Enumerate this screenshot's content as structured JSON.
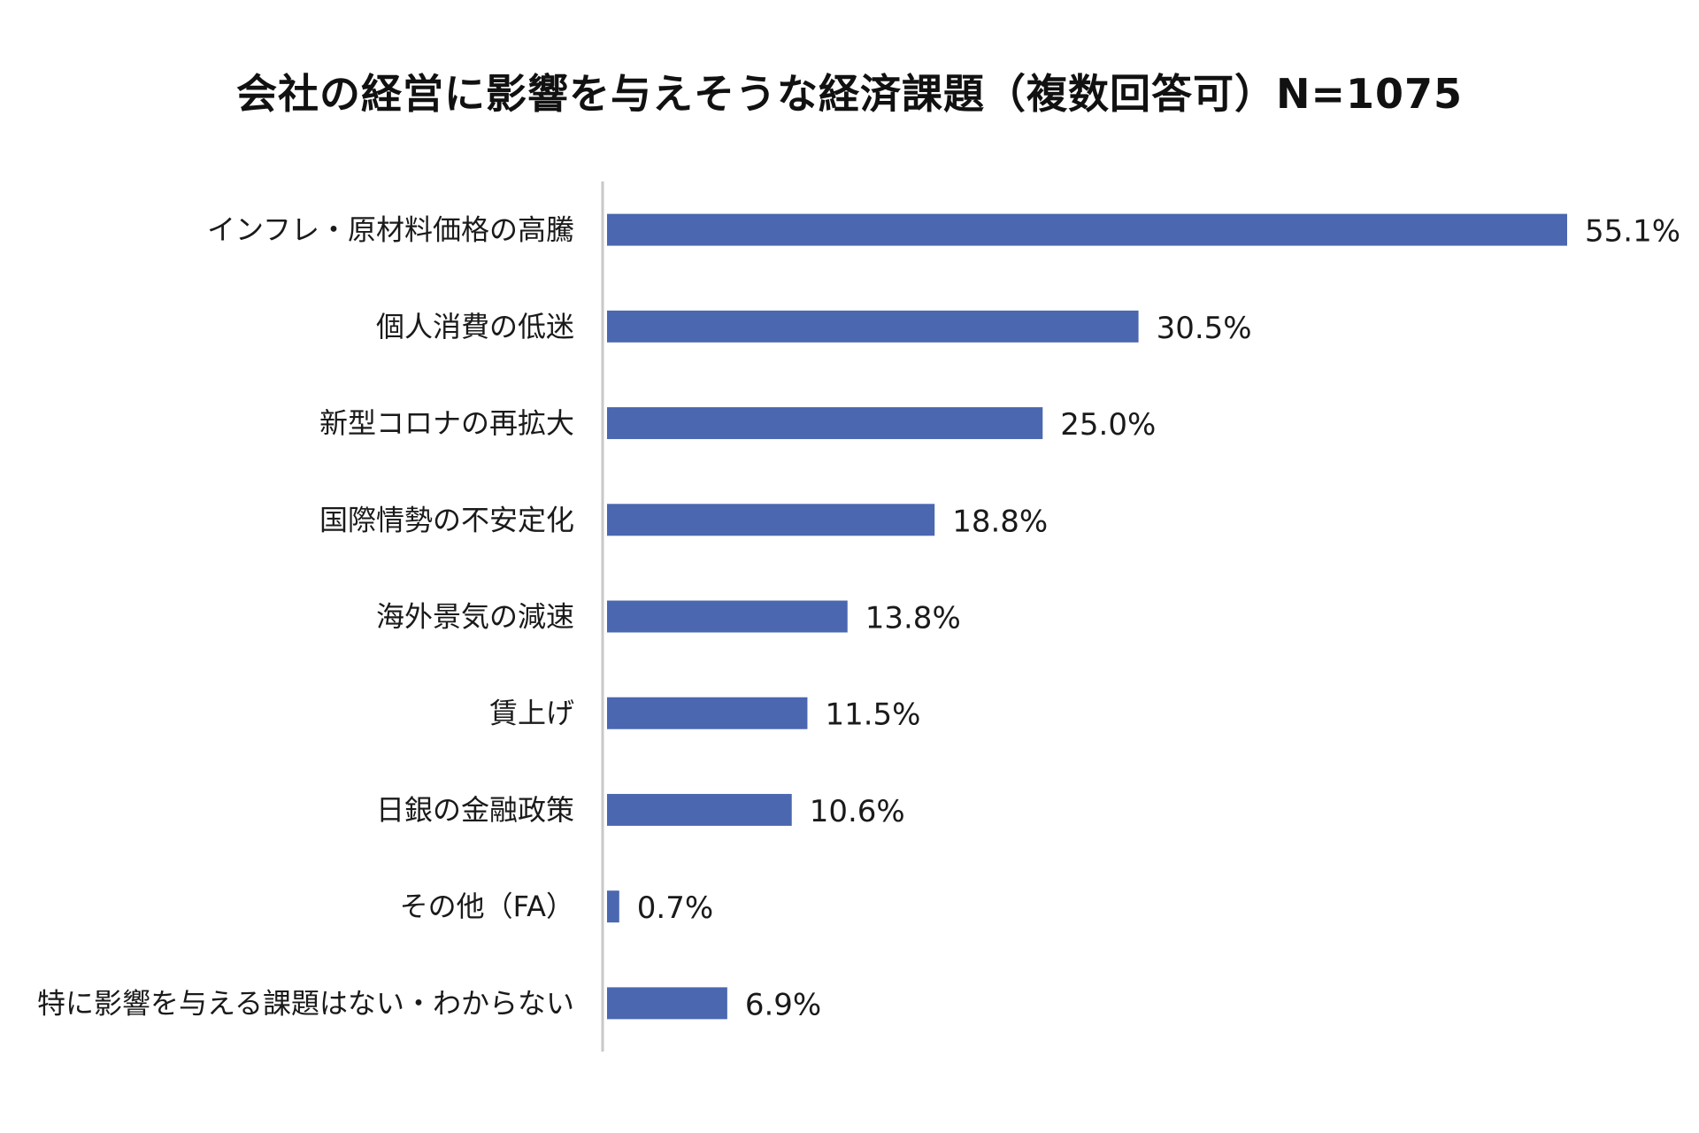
{
  "title": "会社の経営に影響を与えそうな経済課題（複数回答可）N=1075",
  "colors": {
    "bar": "#4a67b0",
    "axis": "#c8c8c8",
    "text": "#1a1a1a"
  },
  "chart_data": {
    "type": "bar",
    "orientation": "horizontal",
    "title": "会社の経営に影響を与えそうな経済課題（複数回答可）N=1075",
    "categories": [
      "インフレ・原材料価格の高騰",
      "個人消費の低迷",
      "新型コロナの再拡大",
      "国際情勢の不安定化",
      "海外景気の減速",
      "賃上げ",
      "日銀の金融政策",
      "その他（FA）",
      "特に影響を与える課題はない・わからない"
    ],
    "values": [
      55.1,
      30.5,
      25.0,
      18.8,
      13.8,
      11.5,
      10.6,
      0.7,
      6.9
    ],
    "value_labels": [
      "55.1%",
      "30.5%",
      "25.0%",
      "18.8%",
      "13.8%",
      "11.5%",
      "10.6%",
      "0.7%",
      "6.9%"
    ],
    "unit": "%",
    "xlim": [
      0,
      55.1
    ],
    "grid": false,
    "legend": "none"
  }
}
